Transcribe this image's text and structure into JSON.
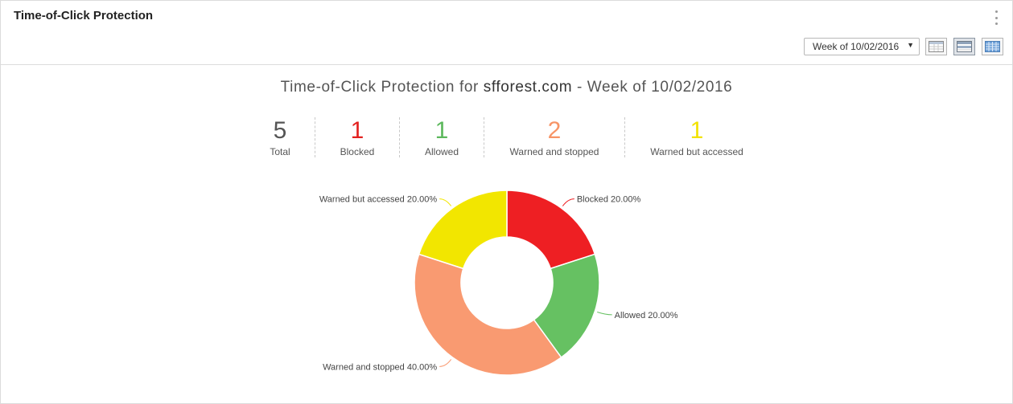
{
  "panel": {
    "title": "Time-of-Click Protection",
    "menu_icon": "kebab-menu-icon"
  },
  "toolbar": {
    "week_selected": "Week of 10/02/2016",
    "views": [
      {
        "name": "day-view-icon",
        "active": false
      },
      {
        "name": "week-view-icon",
        "active": true
      },
      {
        "name": "month-view-icon",
        "active": false
      }
    ]
  },
  "chart_title": {
    "prefix": "Time-of-Click Protection for ",
    "domain": "sfforest.com",
    "suffix": " - Week of 10/02/2016"
  },
  "stats": [
    {
      "value": "5",
      "label": "Total",
      "color": "#555555"
    },
    {
      "value": "1",
      "label": "Blocked",
      "color": "#e3211f"
    },
    {
      "value": "1",
      "label": "Allowed",
      "color": "#5cb85c"
    },
    {
      "value": "2",
      "label": "Warned and stopped",
      "color": "#f79466"
    },
    {
      "value": "1",
      "label": "Warned but accessed",
      "color": "#f2e200"
    }
  ],
  "chart_data": {
    "type": "pie",
    "donut": true,
    "categories": [
      "Blocked",
      "Allowed",
      "Warned and stopped",
      "Warned but accessed"
    ],
    "values": [
      20.0,
      20.0,
      40.0,
      20.0
    ],
    "labels": [
      "Blocked 20.00%",
      "Allowed 20.00%",
      "Warned and stopped 40.00%",
      "Warned but accessed 20.00%"
    ],
    "colors": [
      "#ee1f23",
      "#66c162",
      "#f99a71",
      "#f2e600"
    ]
  }
}
